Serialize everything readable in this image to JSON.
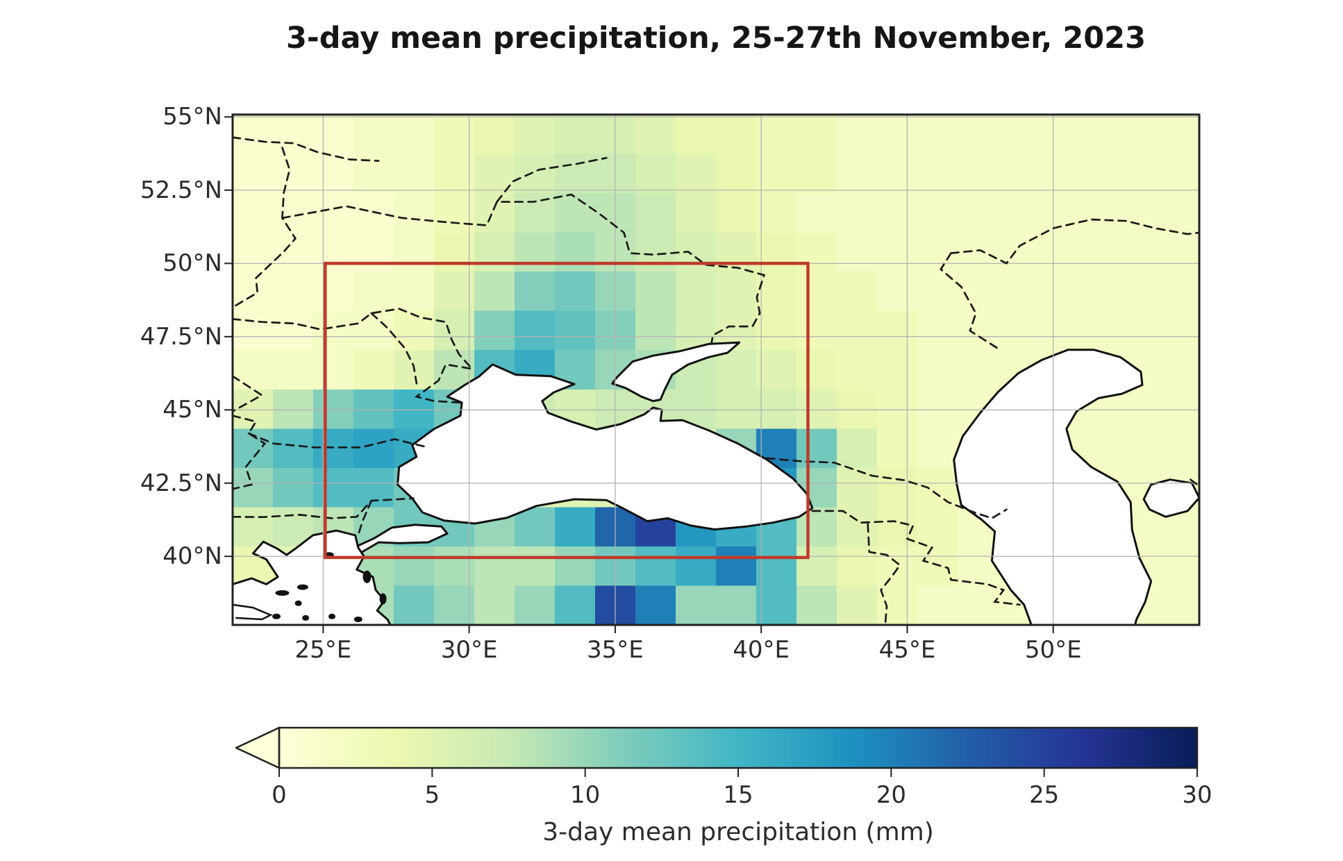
{
  "figure": {
    "background_color": "#ffffff",
    "title": "3-day mean precipitation, 25-27th November, 2023"
  },
  "chart_data": {
    "type": "heatmap",
    "title": "3-day mean precipitation, 25-27th November, 2023",
    "subtitle": "",
    "xlabel": "",
    "ylabel": "",
    "legend": "none",
    "grid_lines": "on",
    "map_region": "Black Sea / Caspian Sea region",
    "extent": {
      "lon_min": 21.9,
      "lon_max": 55.0,
      "lat_min": 37.66,
      "lat_max": 55.08
    },
    "x_axis": {
      "ticks": [
        {
          "label": "25°E",
          "lon": 25
        },
        {
          "label": "30°E",
          "lon": 30
        },
        {
          "label": "35°E",
          "lon": 35
        },
        {
          "label": "40°E",
          "lon": 40
        },
        {
          "label": "45°E",
          "lon": 45
        },
        {
          "label": "50°E",
          "lon": 50
        }
      ]
    },
    "y_axis": {
      "ticks": [
        {
          "label": "55°N",
          "lat": 55
        },
        {
          "label": "52.5°N",
          "lat": 52.5
        },
        {
          "label": "50°N",
          "lat": 50
        },
        {
          "label": "47.5°N",
          "lat": 47.5
        },
        {
          "label": "45°N",
          "lat": 45
        },
        {
          "label": "42.5°N",
          "lat": 42.5
        },
        {
          "label": "40°N",
          "lat": 40
        }
      ]
    },
    "study_box": {
      "lon_min": 25.07,
      "lon_max": 41.6,
      "lat_min": 39.96,
      "lat_max": 50.0,
      "color": "#bf3a2b",
      "line_width": 4.5
    },
    "precip_grid": {
      "units": "mm",
      "ncols": 24,
      "nrows": 13,
      "lon_start": 21.9,
      "lon_end": 55.0,
      "lat_start": 55.08,
      "lat_end": 37.66,
      "values_mm": [
        [
          1,
          1,
          1,
          2,
          2,
          3,
          4,
          5,
          6,
          6,
          5,
          4,
          4,
          3,
          3,
          2,
          2,
          2,
          2,
          2,
          2,
          2,
          2,
          2
        ],
        [
          1,
          1,
          1,
          2,
          2,
          3,
          5,
          6,
          7,
          7,
          6,
          5,
          4,
          3,
          3,
          2,
          2,
          2,
          2,
          2,
          2,
          2,
          2,
          2
        ],
        [
          1,
          1,
          1,
          1,
          2,
          3,
          5,
          7,
          8,
          8,
          7,
          5,
          4,
          3,
          2,
          2,
          2,
          2,
          2,
          2,
          2,
          2,
          2,
          2
        ],
        [
          1,
          1,
          1,
          1,
          2,
          4,
          6,
          8,
          9,
          8,
          7,
          6,
          5,
          4,
          3,
          2,
          2,
          2,
          2,
          2,
          2,
          2,
          2,
          2
        ],
        [
          1,
          1,
          1,
          2,
          2,
          5,
          8,
          11,
          12,
          10,
          8,
          6,
          5,
          4,
          3,
          3,
          2,
          2,
          2,
          2,
          2,
          2,
          2,
          2
        ],
        [
          1,
          1,
          2,
          2,
          3,
          6,
          11,
          14,
          13,
          11,
          8,
          6,
          5,
          4,
          3,
          3,
          3,
          2,
          2,
          2,
          2,
          2,
          2,
          2
        ],
        [
          2,
          2,
          2,
          3,
          5,
          8,
          14,
          16,
          12,
          10,
          9,
          7,
          6,
          5,
          4,
          3,
          3,
          2,
          2,
          2,
          2,
          2,
          2,
          2
        ],
        [
          5,
          8,
          11,
          13,
          15,
          12,
          9,
          7,
          6,
          7,
          7,
          7,
          6,
          6,
          5,
          4,
          3,
          2,
          2,
          2,
          2,
          2,
          2,
          2
        ],
        [
          12,
          14,
          16,
          17,
          16,
          12,
          8,
          6,
          5,
          5,
          5,
          6,
          10,
          20,
          12,
          6,
          3,
          2,
          2,
          2,
          2,
          2,
          2,
          2
        ],
        [
          10,
          12,
          14,
          14,
          12,
          10,
          7,
          5,
          5,
          5,
          5,
          8,
          14,
          18,
          10,
          5,
          4,
          3,
          2,
          2,
          2,
          2,
          2,
          2
        ],
        [
          6,
          7,
          8,
          10,
          12,
          12,
          10,
          12,
          16,
          22,
          25,
          18,
          16,
          14,
          8,
          5,
          4,
          3,
          2,
          2,
          2,
          2,
          2,
          2
        ],
        [
          4,
          5,
          7,
          9,
          10,
          9,
          8,
          8,
          10,
          12,
          14,
          16,
          20,
          14,
          6,
          4,
          3,
          3,
          2,
          2,
          2,
          2,
          2,
          2
        ],
        [
          3,
          4,
          6,
          9,
          12,
          10,
          8,
          10,
          14,
          24,
          20,
          10,
          10,
          14,
          8,
          5,
          3,
          2,
          2,
          2,
          2,
          2,
          2,
          2
        ]
      ]
    },
    "colorbar": {
      "label": "3-day mean precipitation (mm)",
      "min": 0,
      "max": 30,
      "ticks": [
        0,
        5,
        10,
        15,
        20,
        25,
        30
      ],
      "extend": "min",
      "colormap": "YlGnBu",
      "stops": [
        [
          0,
          "#ffffd9"
        ],
        [
          3.75,
          "#edf8b1"
        ],
        [
          7.5,
          "#c7e9b4"
        ],
        [
          11.25,
          "#7fcdbb"
        ],
        [
          15,
          "#41b6c4"
        ],
        [
          18.75,
          "#1d91c0"
        ],
        [
          22.5,
          "#225ea8"
        ],
        [
          26.25,
          "#253494"
        ],
        [
          30,
          "#081d58"
        ]
      ]
    },
    "map_style": {
      "sea_fill": "#ffffff",
      "coastline_color": "#111111",
      "border_style": "dashed",
      "border_color": "#1a1a1a",
      "gridline_color": "#b3b3b3",
      "frame_color": "#222222"
    }
  }
}
